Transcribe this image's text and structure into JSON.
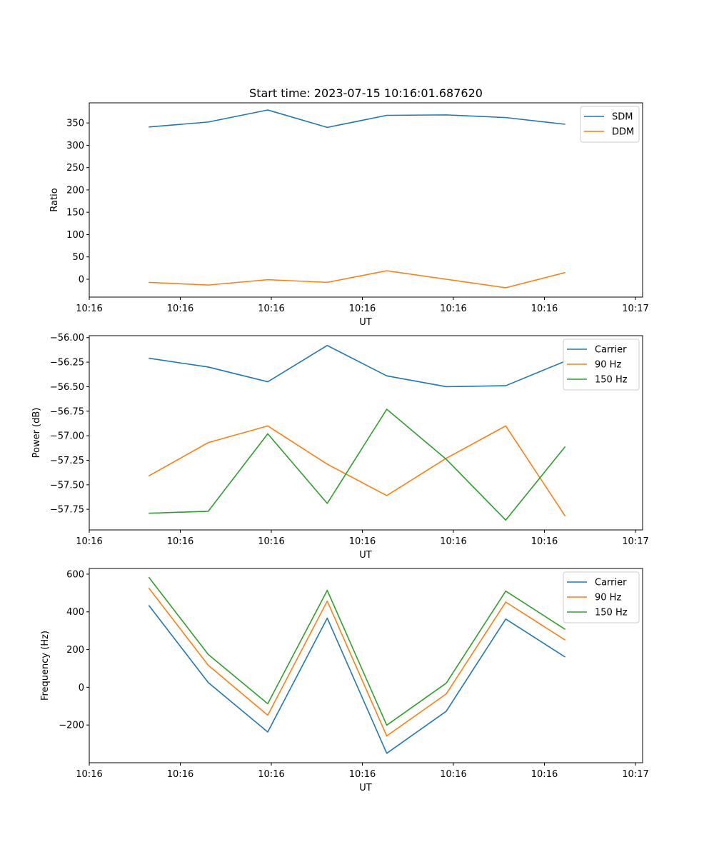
{
  "figure_title": "Start time: 2023-07-15 10:16:01.687620",
  "colors": {
    "series1": "#1f77b4",
    "series2": "#ff7f0e",
    "series3": "#2ca02c"
  },
  "chart_data": [
    {
      "type": "line",
      "title": "Start time: 2023-07-15 10:16:01.687620",
      "xlabel": "UT",
      "ylabel": "Ratio",
      "xlim": [
        0,
        9.3
      ],
      "ylim": [
        -40,
        395
      ],
      "x": [
        1,
        2,
        3,
        4,
        5,
        6,
        7,
        8
      ],
      "xticks": [
        0,
        1.53,
        3.06,
        4.59,
        6.12,
        7.65,
        9.18
      ],
      "xtick_labels": [
        "10:16",
        "10:16",
        "10:16",
        "10:16",
        "10:16",
        "10:16",
        "10:17"
      ],
      "yticks": [
        0,
        50,
        100,
        150,
        200,
        250,
        300,
        350
      ],
      "ytick_labels": [
        "0",
        "50",
        "100",
        "150",
        "200",
        "250",
        "300",
        "350"
      ],
      "legend_loc": "top-right",
      "series": [
        {
          "name": "SDM",
          "color": "#1f77b4",
          "values": [
            341,
            352,
            379,
            340,
            367,
            368,
            362,
            347
          ]
        },
        {
          "name": "DDM",
          "color": "#ff7f0e",
          "values": [
            -7,
            -13,
            -1,
            -7,
            19,
            0,
            -19,
            15
          ]
        }
      ]
    },
    {
      "type": "line",
      "title": "",
      "xlabel": "UT",
      "ylabel": "Power (dB)",
      "xlim": [
        0,
        9.3
      ],
      "ylim": [
        -57.96,
        -55.98
      ],
      "x": [
        1,
        2,
        3,
        4,
        5,
        6,
        7,
        8
      ],
      "xticks": [
        0,
        1.53,
        3.06,
        4.59,
        6.12,
        7.65,
        9.18
      ],
      "xtick_labels": [
        "10:16",
        "10:16",
        "10:16",
        "10:16",
        "10:16",
        "10:16",
        "10:17"
      ],
      "yticks": [
        -57.75,
        -57.5,
        -57.25,
        -57.0,
        -56.75,
        -56.5,
        -56.25,
        -56.0
      ],
      "ytick_labels": [
        "−57.75",
        "−57.50",
        "−57.25",
        "−57.00",
        "−56.75",
        "−56.50",
        "−56.25",
        "−56.00"
      ],
      "legend_loc": "top-right",
      "series": [
        {
          "name": "Carrier",
          "color": "#1f77b4",
          "values": [
            -56.21,
            -56.3,
            -56.45,
            -56.08,
            -56.39,
            -56.5,
            -56.49,
            -56.24
          ]
        },
        {
          "name": "90 Hz",
          "color": "#ff7f0e",
          "values": [
            -57.41,
            -57.07,
            -56.9,
            -57.29,
            -57.61,
            -57.23,
            -56.9,
            -57.82
          ]
        },
        {
          "name": "150 Hz",
          "color": "#2ca02c",
          "values": [
            -57.79,
            -57.77,
            -56.98,
            -57.69,
            -56.73,
            -57.24,
            -57.86,
            -57.11
          ]
        }
      ]
    },
    {
      "type": "line",
      "title": "",
      "xlabel": "UT",
      "ylabel": "Frequency (Hz)",
      "xlim": [
        0,
        9.3
      ],
      "ylim": [
        -400,
        630
      ],
      "x": [
        1,
        2,
        3,
        4,
        5,
        6,
        7,
        8
      ],
      "xticks": [
        0,
        1.53,
        3.06,
        4.59,
        6.12,
        7.65,
        9.18
      ],
      "xtick_labels": [
        "10:16",
        "10:16",
        "10:16",
        "10:16",
        "10:16",
        "10:16",
        "10:17"
      ],
      "yticks": [
        -200,
        0,
        200,
        400,
        600
      ],
      "ytick_labels": [
        "−200",
        "0",
        "200",
        "400",
        "600"
      ],
      "legend_loc": "top-right",
      "series": [
        {
          "name": "Carrier",
          "color": "#1f77b4",
          "values": [
            435,
            25,
            -237,
            367,
            -350,
            -127,
            362,
            160
          ]
        },
        {
          "name": "90 Hz",
          "color": "#ff7f0e",
          "values": [
            527,
            117,
            -148,
            457,
            -258,
            -35,
            452,
            250
          ]
        },
        {
          "name": "150 Hz",
          "color": "#2ca02c",
          "values": [
            584,
            174,
            -87,
            514,
            -201,
            22,
            510,
            307
          ]
        }
      ]
    }
  ]
}
